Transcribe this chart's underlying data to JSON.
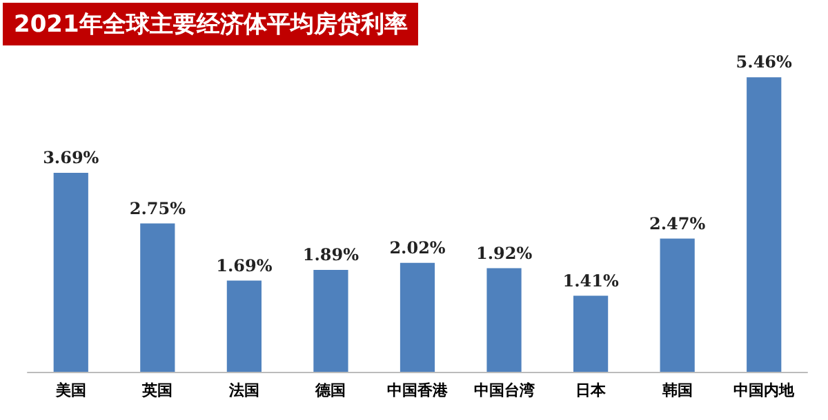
{
  "chart_data": {
    "type": "bar",
    "title": "2021年全球主要经济体平均房贷利率",
    "categories": [
      "美国",
      "英国",
      "法国",
      "德国",
      "中国香港",
      "中国台湾",
      "日本",
      "韩国",
      "中国内地"
    ],
    "values": [
      3.69,
      2.75,
      1.69,
      1.89,
      2.02,
      1.92,
      1.41,
      2.47,
      5.46
    ],
    "value_labels": [
      "3.69%",
      "2.75%",
      "1.69%",
      "1.89%",
      "2.02%",
      "1.92%",
      "1.41%",
      "2.47%",
      "5.46%"
    ],
    "color": "#4f81bd",
    "tick_labels": "x"
  }
}
